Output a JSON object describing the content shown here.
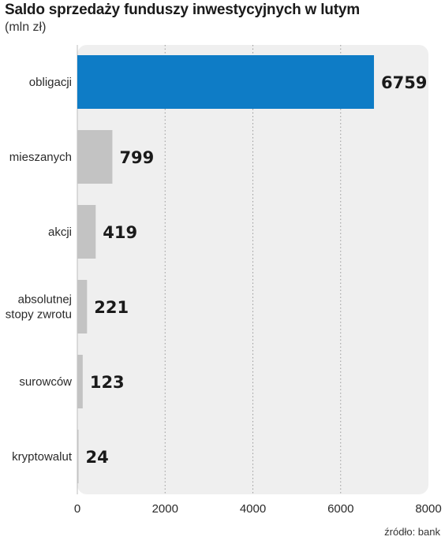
{
  "header": {
    "title": "Saldo sprzedaży funduszy inwestycyjnych w lutym",
    "subtitle": "(mln zł)"
  },
  "source": "źródło: bank",
  "colors": {
    "highlight": "#0e7cc6",
    "bar": "#c3c3c3",
    "panel": "#efefef",
    "grid": "#9a9a9a"
  },
  "chart_data": {
    "type": "bar",
    "orientation": "horizontal",
    "title": "Saldo sprzedaży funduszy inwestycyjnych w lutym",
    "subtitle": "(mln zł)",
    "categories": [
      [
        "obligacji"
      ],
      [
        "mieszanych"
      ],
      [
        "akcji"
      ],
      [
        "absolutnej",
        "stopy zwrotu"
      ],
      [
        "surowców"
      ],
      [
        "kryptowalut"
      ]
    ],
    "values": [
      6759,
      799,
      419,
      221,
      123,
      24
    ],
    "value_labels": [
      "6759",
      "799",
      "419",
      "221",
      "123",
      "24"
    ],
    "highlighted_index": 0,
    "xlim": [
      0,
      8000
    ],
    "xticks": [
      "0",
      "2000",
      "4000",
      "6000",
      "8000"
    ],
    "xtick_values": [
      0,
      2000,
      4000,
      6000,
      8000
    ],
    "grid": "vertical dotted",
    "xlabel": "",
    "ylabel": ""
  }
}
